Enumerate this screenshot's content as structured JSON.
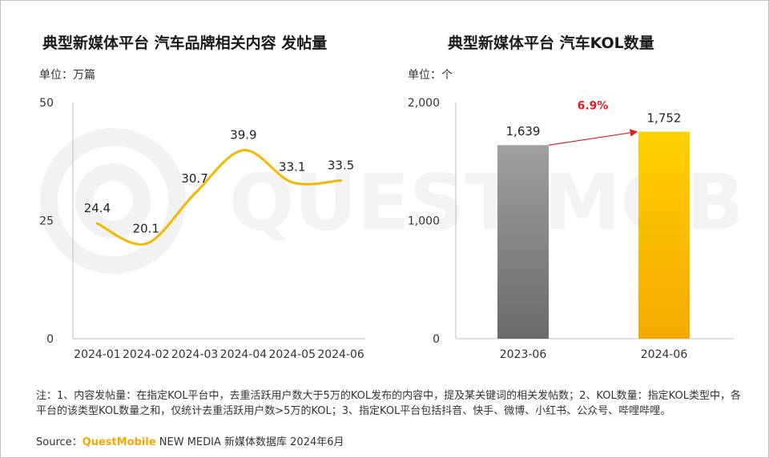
{
  "watermark": {
    "text": "QUEST MOBILE"
  },
  "chart_data": [
    {
      "type": "line",
      "title": "典型新媒体平台 汽车品牌相关内容 发帖量",
      "unit": "单位：万篇",
      "x": [
        "2024-01",
        "2024-02",
        "2024-03",
        "2024-04",
        "2024-05",
        "2024-06"
      ],
      "series": [
        {
          "values": [
            24.4,
            20.1,
            30.7,
            39.9,
            33.1,
            33.5
          ],
          "color": "#f5b800"
        }
      ],
      "y_ticks": [
        "0",
        "25",
        "50"
      ],
      "data_labels": [
        "24.4",
        "20.1",
        "30.7",
        "39.9",
        "33.1",
        "33.5"
      ],
      "ylim": [
        0,
        50
      ],
      "grid": false
    },
    {
      "type": "bar",
      "title": "典型新媒体平台 汽车KOL数量",
      "unit": "单位：个",
      "categories": [
        "2023-06",
        "2024-06"
      ],
      "values": [
        1639,
        1752
      ],
      "colors": [
        "#7f7f7f",
        "#f5b800"
      ],
      "y_ticks": [
        "0",
        "1,000",
        "2,000"
      ],
      "data_labels": [
        "1,639",
        "1,752"
      ],
      "growth_label": "6.9%",
      "ylim": [
        0,
        2000
      ],
      "grid": false
    }
  ],
  "footnote": "注：1、内容发帖量：在指定KOL平台中，去重活跃用户数大于5万的KOL发布的内容中，提及某关键词的相关发帖数；2、KOL数量：指定KOL类型中，各平台的该类型KOL数量之和，仅统计去重活跃用户数>5万的KOL；3、指定KOL平台包括抖音、快手、微博、小红书、公众号、哔哩哔哩。",
  "source": {
    "prefix": "Source：",
    "brand": "QuestMobile",
    "suffix": " NEW MEDIA 新媒体数据库 2024年6月"
  }
}
